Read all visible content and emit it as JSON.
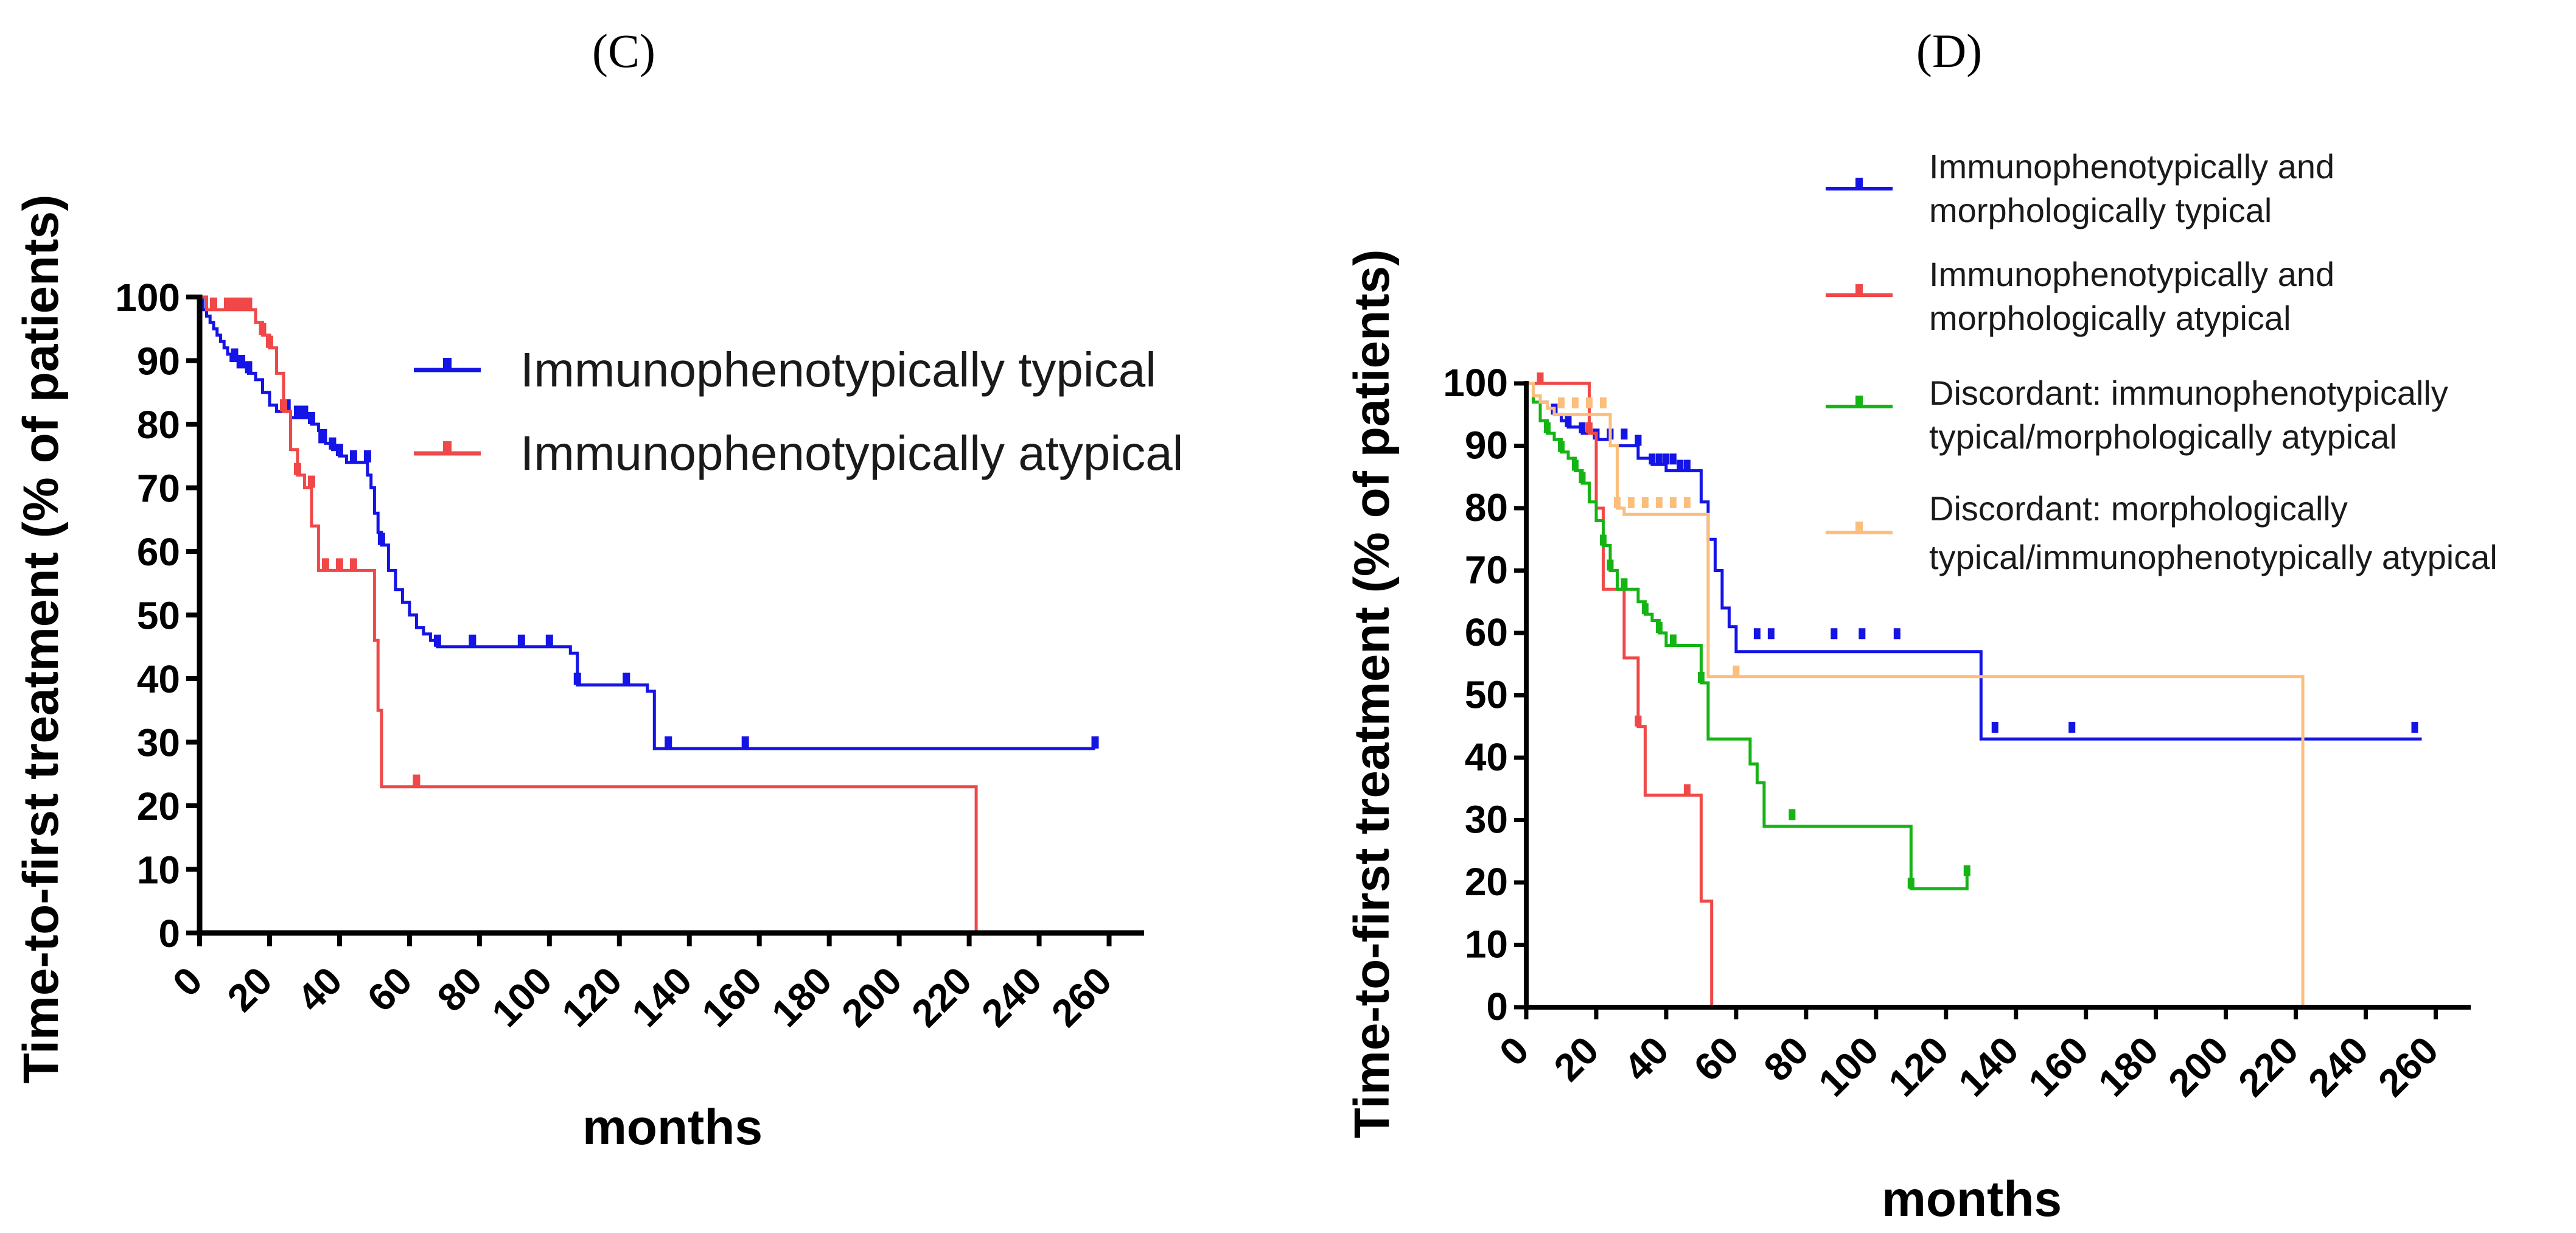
{
  "colors": {
    "typical_blue": "#1414e6",
    "atypical_red": "#f04848",
    "discordant_green": "#14b414",
    "discordant_orange": "#fbbe7c"
  },
  "chart_data": [
    {
      "id": "C",
      "type": "line",
      "step": true,
      "panel_label": "(C)",
      "xlabel": "months",
      "ylabel": "Time-to-first treatment (% of patients)",
      "xlim": [
        0,
        270
      ],
      "ylim": [
        0,
        100
      ],
      "xticks": [
        "0",
        "20",
        "40",
        "60",
        "80",
        "100",
        "120",
        "140",
        "160",
        "180",
        "200",
        "220",
        "240",
        "260"
      ],
      "yticks": [
        "0",
        "10",
        "20",
        "30",
        "40",
        "50",
        "60",
        "70",
        "80",
        "90",
        "100"
      ],
      "legend_position": "top-right",
      "series": [
        {
          "name": "Immunophenotypically typical",
          "color": "#1414e6",
          "x": [
            0,
            1,
            2,
            3,
            4,
            5,
            6,
            7,
            8,
            9,
            10,
            11,
            12,
            14,
            16,
            18,
            20,
            22,
            24,
            26,
            28,
            30,
            32,
            34,
            36,
            38,
            40,
            42,
            44,
            46,
            48,
            49,
            50,
            51,
            52,
            54,
            56,
            58,
            60,
            62,
            64,
            66,
            68,
            100,
            106,
            108,
            118,
            126,
            128,
            130,
            256
          ],
          "y": [
            100,
            98,
            97,
            96,
            95,
            94,
            93,
            92,
            91,
            90,
            90,
            89,
            89,
            88,
            87,
            85,
            83,
            82,
            82,
            81,
            81,
            81,
            80,
            79,
            77,
            76,
            75,
            74,
            74,
            74,
            72,
            70,
            66,
            63,
            61,
            57,
            54,
            52,
            50,
            48,
            47,
            46,
            45,
            45,
            44,
            39,
            39,
            39,
            38,
            29,
            29
          ],
          "censor_x": [
            10,
            12,
            14,
            25,
            28,
            30,
            32,
            35,
            38,
            40,
            44,
            48,
            52,
            68,
            78,
            92,
            100,
            108,
            122,
            134,
            156,
            256
          ],
          "censor_y": [
            90,
            89,
            88,
            82,
            81,
            81,
            80,
            77,
            76,
            75,
            74,
            74,
            61,
            45,
            45,
            45,
            45,
            39,
            39,
            29,
            29,
            29
          ]
        },
        {
          "name": "Immunophenotypically atypical",
          "color": "#f04848",
          "x": [
            0,
            2,
            14,
            16,
            18,
            20,
            22,
            24,
            26,
            28,
            30,
            32,
            34,
            48,
            50,
            51,
            52,
            53,
            222,
            222
          ],
          "y": [
            100,
            98,
            98,
            96,
            94,
            92,
            88,
            82,
            76,
            72,
            70,
            64,
            57,
            57,
            46,
            35,
            23,
            23,
            23,
            0
          ],
          "censor_x": [
            4,
            8,
            10,
            12,
            14,
            18,
            20,
            24,
            28,
            32,
            36,
            40,
            44,
            62
          ],
          "censor_y": [
            98,
            98,
            98,
            98,
            98,
            94,
            92,
            82,
            72,
            70,
            57,
            57,
            57,
            23
          ]
        }
      ]
    },
    {
      "id": "D",
      "type": "line",
      "step": true,
      "panel_label": "(D)",
      "xlabel": "months",
      "ylabel": "Time-to-first treatment (% of patients)",
      "xlim": [
        0,
        270
      ],
      "ylim": [
        0,
        100
      ],
      "xticks": [
        "0",
        "20",
        "40",
        "60",
        "80",
        "100",
        "120",
        "140",
        "160",
        "180",
        "200",
        "220",
        "240",
        "260"
      ],
      "yticks": [
        "0",
        "10",
        "20",
        "30",
        "40",
        "50",
        "60",
        "70",
        "80",
        "90",
        "100"
      ],
      "legend_position": "top-right",
      "series": [
        {
          "name": "Immunophenotypically and morphologically typical",
          "legend_lines": [
            "Immunophenotypically and",
            "morphologically typical"
          ],
          "color": "#1414e6",
          "x": [
            0,
            2,
            4,
            6,
            8,
            10,
            12,
            16,
            20,
            24,
            28,
            32,
            36,
            40,
            44,
            48,
            50,
            52,
            54,
            56,
            58,
            60,
            62,
            130,
            256
          ],
          "y": [
            100,
            98,
            97,
            96,
            95,
            94,
            93,
            92,
            91,
            90,
            90,
            88,
            87,
            86,
            86,
            86,
            81,
            75,
            70,
            64,
            61,
            57,
            57,
            43,
            43
          ],
          "censor_x": [
            8,
            12,
            16,
            20,
            24,
            28,
            32,
            36,
            38,
            40,
            42,
            44,
            46,
            66,
            70,
            88,
            96,
            106,
            134,
            156,
            254
          ],
          "censor_y": [
            95,
            93,
            92,
            91,
            91,
            91,
            90,
            87,
            87,
            87,
            87,
            86,
            86,
            59,
            59,
            59,
            59,
            59,
            44,
            44,
            44
          ]
        },
        {
          "name": "Immunophenotypically and morphologically atypical",
          "legend_lines": [
            "Immunophenotypically and",
            "morphologically atypical"
          ],
          "color": "#f04848",
          "x": [
            0,
            2,
            4,
            18,
            20,
            22,
            24,
            26,
            28,
            30,
            32,
            34,
            48,
            50,
            52,
            53
          ],
          "y": [
            100,
            100,
            100,
            92,
            80,
            67,
            67,
            67,
            56,
            56,
            45,
            34,
            34,
            17,
            17,
            0
          ],
          "censor_x": [
            4,
            18,
            32,
            46
          ],
          "censor_y": [
            100,
            92,
            45,
            34
          ]
        },
        {
          "name": "Discordant: immunophenotypically typical/morphologically atypical",
          "legend_lines": [
            "Discordant: immunophenotypically",
            "typical/morphologically atypical"
          ],
          "color": "#14b414",
          "x": [
            0,
            2,
            4,
            6,
            8,
            10,
            12,
            14,
            16,
            18,
            20,
            22,
            24,
            26,
            28,
            30,
            32,
            34,
            36,
            38,
            40,
            48,
            50,
            52,
            62,
            64,
            66,
            68,
            108,
            110,
            124,
            126
          ],
          "y": [
            100,
            97,
            94,
            92,
            91,
            89,
            88,
            86,
            84,
            81,
            78,
            74,
            70,
            67,
            67,
            67,
            65,
            63,
            62,
            60,
            58,
            58,
            52,
            43,
            43,
            39,
            36,
            29,
            29,
            19,
            19,
            21
          ],
          "censor_x": [
            6,
            10,
            14,
            16,
            22,
            24,
            28,
            34,
            38,
            42,
            50,
            76,
            110,
            126
          ],
          "censor_y": [
            92,
            89,
            86,
            84,
            74,
            70,
            67,
            63,
            60,
            58,
            52,
            30,
            19,
            21
          ]
        },
        {
          "name": "Discordant: morphologically typical/immunophenotypically atypical",
          "legend_lines": [
            "Discordant: morphologically",
            "typical/immunophenotypically atypical"
          ],
          "color": "#fbbe7c",
          "x": [
            0,
            2,
            4,
            6,
            8,
            10,
            12,
            14,
            16,
            18,
            20,
            22,
            24,
            26,
            28,
            30,
            50,
            52,
            54,
            222,
            222
          ],
          "y": [
            100,
            98,
            97,
            96,
            95,
            95,
            95,
            95,
            95,
            95,
            95,
            95,
            90,
            80,
            79,
            79,
            79,
            53,
            53,
            53,
            0
          ],
          "censor_x": [
            10,
            14,
            18,
            22,
            26,
            30,
            34,
            38,
            42,
            46,
            60
          ],
          "censor_y": [
            96,
            96,
            96,
            96,
            80,
            80,
            80,
            80,
            80,
            80,
            53
          ]
        }
      ]
    }
  ]
}
